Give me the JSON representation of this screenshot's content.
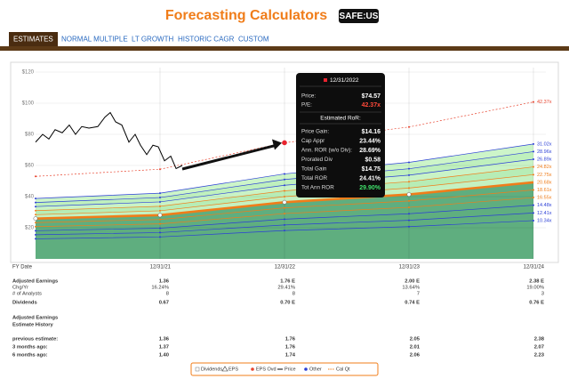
{
  "header": {
    "title": "Forecasting Calculators",
    "logo": "SAFE:US"
  },
  "tabs": [
    "ESTIMATES",
    "NORMAL MULTIPLE",
    "LT GROWTH",
    "HISTORIC CAGR",
    "CUSTOM"
  ],
  "chart_data": {
    "type": "line",
    "xlim": [
      2020,
      2024
    ],
    "xticks": [
      {
        "value": 2021,
        "label": "12/31/21"
      },
      {
        "value": 2022,
        "label": "12/31/22"
      },
      {
        "value": 2023,
        "label": "12/31/23"
      },
      {
        "value": 2024,
        "label": "12/31/24"
      }
    ],
    "ylim": [
      0,
      120
    ],
    "yticks": [
      {
        "value": 20,
        "label": "$20"
      },
      {
        "value": 40,
        "label": "$40"
      },
      {
        "value": 60,
        "label": "$60"
      },
      {
        "value": 80,
        "label": "$80"
      },
      {
        "value": 100,
        "label": "$100"
      },
      {
        "value": 120,
        "label": "$120"
      }
    ],
    "grid": true,
    "x": [
      2020,
      2021,
      2022,
      2023,
      2024
    ],
    "series": [
      {
        "name": "42.37x",
        "color": "#e8432e",
        "values": [
          53.0,
          57.6,
          74.6,
          84.7,
          100.8
        ]
      },
      {
        "name": "31.02x",
        "color": "#2b3fd6",
        "values": [
          38.8,
          42.2,
          54.6,
          62.0,
          73.8
        ]
      },
      {
        "name": "28.96x",
        "color": "#2b3fd6",
        "values": [
          36.2,
          39.4,
          51.0,
          57.9,
          68.9
        ]
      },
      {
        "name": "26.89x",
        "color": "#2b3fd6",
        "values": [
          33.6,
          36.6,
          47.3,
          53.8,
          64.0
        ]
      },
      {
        "name": "24.82x",
        "color": "#f07d1a",
        "values": [
          31.0,
          33.8,
          43.7,
          49.6,
          59.1
        ]
      },
      {
        "name": "22.75x",
        "color": "#f07d1a",
        "values": [
          28.4,
          30.9,
          40.0,
          45.5,
          54.1
        ]
      },
      {
        "name": "20.68x",
        "color": "#f07d1a",
        "values": [
          25.9,
          28.1,
          36.4,
          41.4,
          49.2
        ]
      },
      {
        "name": "18.61x",
        "color": "#f07d1a",
        "values": [
          23.3,
          25.3,
          32.8,
          37.2,
          44.3
        ]
      },
      {
        "name": "16.55x",
        "color": "#f07d1a",
        "values": [
          20.7,
          22.5,
          29.1,
          33.1,
          39.4
        ]
      },
      {
        "name": "14.48x",
        "color": "#2b3fd6",
        "values": [
          18.1,
          19.7,
          25.5,
          29.0,
          34.5
        ]
      },
      {
        "name": "12.41x",
        "color": "#2b3fd6",
        "values": [
          15.5,
          16.9,
          21.8,
          24.8,
          29.5
        ]
      },
      {
        "name": "10.34x",
        "color": "#2b3fd6",
        "values": [
          12.9,
          14.1,
          18.2,
          20.7,
          24.6
        ]
      }
    ],
    "price": {
      "color": "#000000",
      "x": [
        2020.0,
        2020.057,
        2020.107,
        2020.157,
        2020.214,
        2020.271,
        2020.321,
        2020.371,
        2020.429,
        2020.5,
        2020.557,
        2020.6,
        2020.643,
        2020.693,
        2020.75,
        2020.8,
        2020.843,
        2020.893,
        2020.943,
        2020.986,
        2021.036,
        2021.086,
        2021.129,
        2021.179
      ],
      "values": [
        75,
        80,
        77,
        83,
        81,
        86,
        80,
        85,
        84,
        85,
        91,
        94,
        88,
        86,
        75,
        80,
        73,
        67,
        73,
        72,
        63,
        66,
        58,
        60
      ]
    }
  },
  "tooltip": {
    "date": "12/31/2022",
    "top": [
      {
        "label": "Price:",
        "value": "$74.57"
      },
      {
        "label": "P/E:",
        "value": "42.37x"
      }
    ],
    "section": "Estimated RoR:",
    "ror": [
      {
        "label": "Price Gain:",
        "value": "$14.16"
      },
      {
        "label": "Cap Appr",
        "value": "23.44%"
      },
      {
        "label": "Ann. ROR (w/o Div):",
        "value": "28.69%"
      },
      {
        "label": "Prorated Div",
        "value": "$0.58"
      },
      {
        "label": "Total Gain",
        "value": "$14.75"
      },
      {
        "label": "Total ROR",
        "value": "24.41%"
      },
      {
        "label": "Tot Ann ROR",
        "value": "29.90%"
      }
    ]
  },
  "table": {
    "fy_label": "FY Date",
    "rows": [
      {
        "label": "Adjusted Earnings",
        "cells": [
          "1.36",
          "1.76 E",
          "2.00 E",
          "2.38 E"
        ]
      },
      {
        "label": "Chg/Yr",
        "cells": [
          "16.24%",
          "29.41%",
          "13.64%",
          "19.00%"
        ]
      },
      {
        "label": "# of Analysts",
        "cells": [
          "8",
          "8",
          "7",
          "3"
        ]
      },
      {
        "label": "Dividends",
        "cells": [
          "0.67",
          "0.70 E",
          "0.74 E",
          "0.76 E"
        ]
      }
    ],
    "history_title": [
      "Adjusted Earnings",
      "Estimate History"
    ],
    "history_rows": [
      {
        "label": "previous estimate:",
        "cells": [
          "1.36",
          "1.76",
          "2.05",
          "2.38"
        ]
      },
      {
        "label": "3 months ago:",
        "cells": [
          "1.37",
          "1.76",
          "2.01",
          "2.07"
        ]
      },
      {
        "label": "6 months ago:",
        "cells": [
          "1.40",
          "1.74",
          "2.06",
          "2.23"
        ]
      }
    ]
  },
  "legend": [
    "Dividends",
    "EPS",
    "EPS Ovd",
    "Price",
    "Other",
    "Cal Qt"
  ]
}
